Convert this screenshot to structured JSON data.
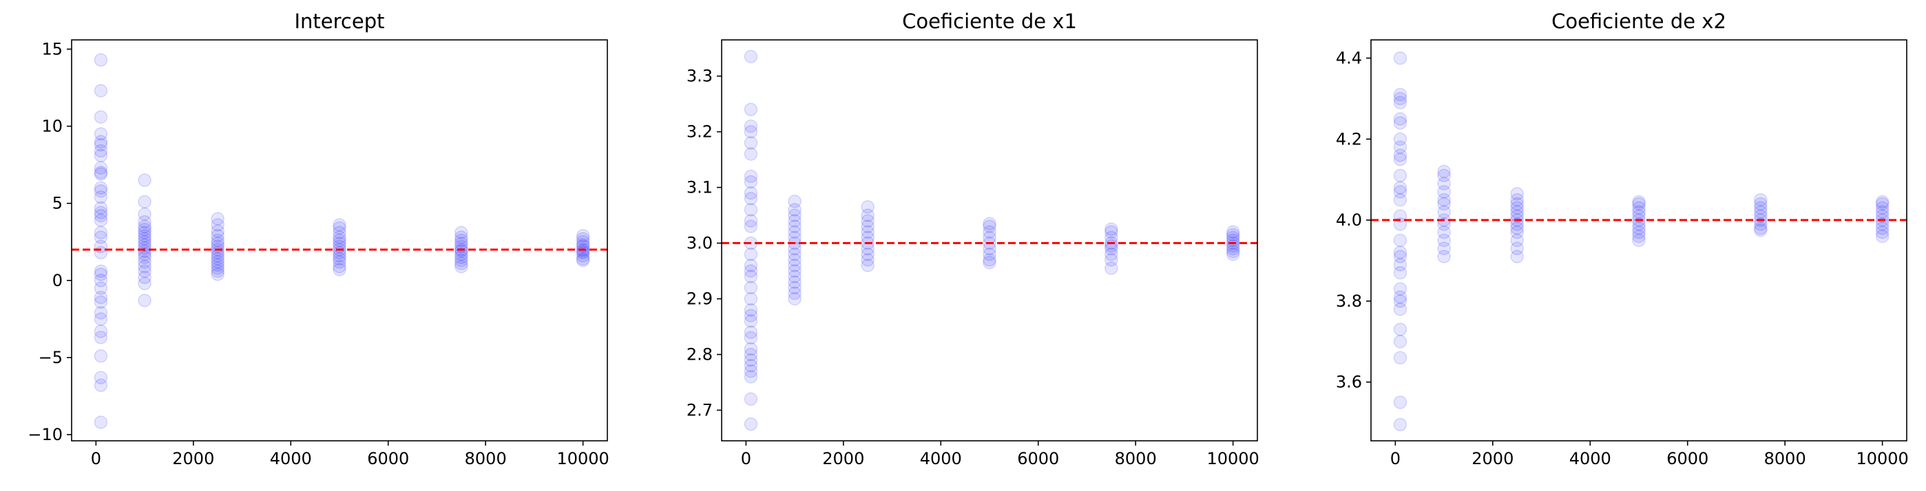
{
  "colors": {
    "points": "#0000ff",
    "reference_line": "#ff0000",
    "axis": "#000000"
  },
  "chart_data": [
    {
      "type": "scatter",
      "title": "Intercept",
      "xlabel": "",
      "ylabel": "",
      "xlim": [
        -500,
        10500
      ],
      "ylim": [
        -10.4,
        15.6
      ],
      "xticks": [
        0,
        2000,
        4000,
        6000,
        8000,
        10000
      ],
      "yticks": [
        -10,
        -5,
        0,
        5,
        10,
        15
      ],
      "ytick_labels": [
        "−10",
        "−5",
        "0",
        "5",
        "10",
        "15"
      ],
      "reference_y": 2.0,
      "points": [
        {
          "x": 100,
          "y": [
            14.3,
            12.3,
            10.6,
            9.5,
            9.0,
            8.8,
            8.4,
            8.1,
            7.3,
            7.0,
            6.9,
            6.0,
            5.8,
            5.4,
            4.7,
            4.4,
            4.2,
            3.9,
            3.1,
            2.8,
            2.2,
            1.8,
            0.6,
            0.4,
            0.0,
            -0.5,
            -1.1,
            -1.4,
            -2.1,
            -2.5,
            -3.3,
            -3.7,
            -4.9,
            -6.3,
            -6.8,
            -9.2
          ]
        },
        {
          "x": 1000,
          "y": [
            6.5,
            5.1,
            4.3,
            3.8,
            3.5,
            3.3,
            3.1,
            2.9,
            2.7,
            2.5,
            2.3,
            2.1,
            1.9,
            1.7,
            1.5,
            1.2,
            0.9,
            0.6,
            0.2,
            -0.2,
            -1.3
          ]
        },
        {
          "x": 2500,
          "y": [
            4.0,
            3.6,
            3.2,
            2.9,
            2.6,
            2.4,
            2.2,
            2.0,
            1.8,
            1.6,
            1.4,
            1.2,
            1.0,
            0.8,
            0.6,
            0.4
          ]
        },
        {
          "x": 5000,
          "y": [
            3.6,
            3.4,
            3.1,
            2.8,
            2.6,
            2.4,
            2.2,
            2.0,
            1.8,
            1.6,
            1.4,
            1.2,
            0.9,
            0.7
          ]
        },
        {
          "x": 7500,
          "y": [
            3.1,
            2.8,
            2.6,
            2.4,
            2.2,
            2.0,
            1.9,
            1.7,
            1.5,
            1.3,
            1.1,
            0.9
          ]
        },
        {
          "x": 10000,
          "y": [
            2.9,
            2.7,
            2.5,
            2.3,
            2.2,
            2.0,
            1.9,
            1.8,
            1.6,
            1.4,
            1.3
          ]
        }
      ]
    },
    {
      "type": "scatter",
      "title": "Coeficiente de x1",
      "xlabel": "",
      "ylabel": "",
      "xlim": [
        -500,
        10500
      ],
      "ylim": [
        2.645,
        3.365
      ],
      "xticks": [
        0,
        2000,
        4000,
        6000,
        8000,
        10000
      ],
      "yticks": [
        2.7,
        2.8,
        2.9,
        3.0,
        3.1,
        3.2,
        3.3
      ],
      "ytick_labels": [
        "2.7",
        "2.8",
        "2.9",
        "3.0",
        "3.1",
        "3.2",
        "3.3"
      ],
      "reference_y": 3.0,
      "points": [
        {
          "x": 100,
          "y": [
            3.335,
            3.24,
            3.21,
            3.2,
            3.18,
            3.16,
            3.12,
            3.11,
            3.09,
            3.08,
            3.06,
            3.04,
            3.03,
            3.0,
            2.98,
            2.96,
            2.95,
            2.94,
            2.92,
            2.9,
            2.88,
            2.87,
            2.86,
            2.84,
            2.83,
            2.81,
            2.8,
            2.79,
            2.78,
            2.77,
            2.76,
            2.72,
            2.675
          ]
        },
        {
          "x": 1000,
          "y": [
            3.075,
            3.06,
            3.05,
            3.04,
            3.03,
            3.02,
            3.01,
            3.0,
            2.99,
            2.98,
            2.97,
            2.96,
            2.95,
            2.94,
            2.93,
            2.92,
            2.91,
            2.9
          ]
        },
        {
          "x": 2500,
          "y": [
            3.065,
            3.05,
            3.04,
            3.03,
            3.02,
            3.01,
            3.0,
            2.99,
            2.98,
            2.97,
            2.96
          ]
        },
        {
          "x": 5000,
          "y": [
            3.035,
            3.03,
            3.02,
            3.01,
            3.0,
            2.99,
            2.98,
            2.97,
            2.965
          ]
        },
        {
          "x": 7500,
          "y": [
            3.025,
            3.02,
            3.01,
            3.0,
            2.995,
            2.99,
            2.98,
            2.97,
            2.955
          ]
        },
        {
          "x": 10000,
          "y": [
            3.02,
            3.015,
            3.01,
            3.005,
            3.0,
            2.995,
            2.99,
            2.985,
            2.98
          ]
        }
      ]
    },
    {
      "type": "scatter",
      "title": "Coeficiente de x2",
      "xlabel": "",
      "ylabel": "",
      "xlim": [
        -500,
        10500
      ],
      "ylim": [
        3.455,
        4.445
      ],
      "xticks": [
        0,
        2000,
        4000,
        6000,
        8000,
        10000
      ],
      "yticks": [
        3.6,
        3.8,
        4.0,
        4.2,
        4.4
      ],
      "ytick_labels": [
        "3.6",
        "3.8",
        "4.0",
        "4.2",
        "4.4"
      ],
      "reference_y": 4.0,
      "points": [
        {
          "x": 100,
          "y": [
            4.4,
            4.31,
            4.3,
            4.29,
            4.25,
            4.24,
            4.2,
            4.18,
            4.16,
            4.15,
            4.11,
            4.08,
            4.07,
            4.05,
            4.01,
            3.99,
            3.95,
            3.92,
            3.91,
            3.89,
            3.87,
            3.83,
            3.81,
            3.8,
            3.78,
            3.73,
            3.7,
            3.66,
            3.55,
            3.495
          ]
        },
        {
          "x": 1000,
          "y": [
            4.12,
            4.11,
            4.09,
            4.07,
            4.05,
            4.04,
            4.02,
            4.0,
            3.99,
            3.97,
            3.95,
            3.93,
            3.91
          ]
        },
        {
          "x": 2500,
          "y": [
            4.065,
            4.05,
            4.04,
            4.03,
            4.02,
            4.01,
            4.0,
            3.99,
            3.98,
            3.97,
            3.95,
            3.93,
            3.91
          ]
        },
        {
          "x": 5000,
          "y": [
            4.045,
            4.04,
            4.03,
            4.02,
            4.01,
            4.0,
            3.99,
            3.98,
            3.97,
            3.96,
            3.95
          ]
        },
        {
          "x": 7500,
          "y": [
            4.05,
            4.04,
            4.03,
            4.02,
            4.01,
            4.0,
            3.99,
            3.98,
            3.975
          ]
        },
        {
          "x": 10000,
          "y": [
            4.045,
            4.04,
            4.03,
            4.02,
            4.01,
            4.0,
            3.99,
            3.98,
            3.97,
            3.96
          ]
        }
      ]
    }
  ]
}
